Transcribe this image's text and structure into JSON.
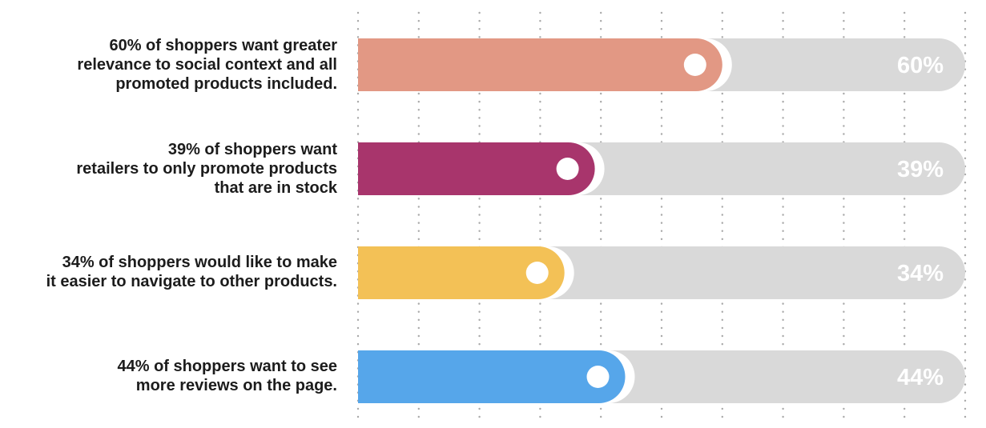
{
  "chart_data": {
    "type": "bar",
    "orientation": "horizontal",
    "xlim": [
      0,
      100
    ],
    "grid": "dotted vertical",
    "track_color": "#d9d9d9",
    "value_label_color": "#ffffff",
    "categories": [
      "60% of shoppers want greater\nrelevance to social context and all\npromoted products included.",
      "39% of shoppers want\nretailers to only promote products\nthat are in stock",
      "34% of shoppers would like to make\nit easier to navigate to other products.",
      "44% of shoppers want to see\nmore reviews on the page."
    ],
    "values": [
      60,
      39,
      34,
      44
    ],
    "value_labels": [
      "60%",
      "39%",
      "34%",
      "44%"
    ],
    "colors": [
      "#e29884",
      "#a8356c",
      "#f3c156",
      "#56a6ea"
    ]
  }
}
